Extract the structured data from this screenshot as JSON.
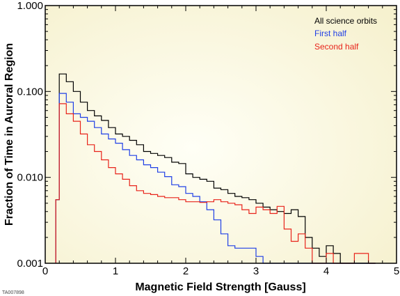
{
  "chart_data": {
    "type": "line",
    "title": "",
    "xlabel": "Magnetic Field Strength [Gauss]",
    "ylabel": "Fraction of Time in Auroral Region",
    "xlim": [
      0,
      5
    ],
    "ylim": [
      0.001,
      1.0
    ],
    "yscale": "log",
    "step": true,
    "grid": false,
    "legend_position": "top-right",
    "x_ticks": [
      0,
      1,
      2,
      3,
      4,
      5
    ],
    "x_tick_labels": [
      "0",
      "1",
      "2",
      "3",
      "4",
      "5"
    ],
    "y_ticks": [
      0.001,
      0.01,
      0.1,
      1.0
    ],
    "y_tick_labels": [
      "0.001",
      "0.010",
      "0.100",
      "1.000"
    ],
    "bin_edges": [
      0.15,
      0.2,
      0.3,
      0.4,
      0.5,
      0.6,
      0.7,
      0.8,
      0.9,
      1.0,
      1.1,
      1.2,
      1.3,
      1.4,
      1.5,
      1.6,
      1.7,
      1.8,
      1.9,
      2.0,
      2.1,
      2.2,
      2.3,
      2.4,
      2.5,
      2.6,
      2.7,
      2.8,
      2.9,
      3.0,
      3.1,
      3.2,
      3.3,
      3.4,
      3.5,
      3.6,
      3.7,
      3.8,
      3.9,
      4.0,
      4.1,
      4.2,
      4.3,
      4.4,
      4.5,
      4.6,
      4.7
    ],
    "series": [
      {
        "name": "All science orbits",
        "color": "#000000",
        "values": [
          0.0055,
          0.16,
          0.13,
          0.1,
          0.075,
          0.06,
          0.052,
          0.046,
          0.038,
          0.032,
          0.03,
          0.027,
          0.024,
          0.02,
          0.019,
          0.018,
          0.017,
          0.015,
          0.0145,
          0.011,
          0.01,
          0.0095,
          0.009,
          0.0075,
          0.0072,
          0.0065,
          0.006,
          0.0058,
          0.0055,
          0.005,
          0.0045,
          0.0042,
          0.004,
          0.0038,
          0.0042,
          0.0035,
          0.002,
          0.0015,
          0.0012,
          0.0016,
          0.0013,
          0.001,
          0.001,
          0.001,
          0.001,
          0.001
        ]
      },
      {
        "name": "First half",
        "color": "#1f3fe6",
        "values": [
          0.0055,
          0.095,
          0.075,
          0.055,
          0.05,
          0.045,
          0.038,
          0.032,
          0.028,
          0.025,
          0.021,
          0.018,
          0.016,
          0.014,
          0.013,
          0.0115,
          0.0102,
          0.0082,
          0.0078,
          0.0065,
          0.006,
          0.0052,
          0.0042,
          0.0032,
          0.0022,
          0.0016,
          0.0015,
          0.0015,
          0.0015,
          0.0012,
          0.001,
          0.001,
          0.001,
          0.001,
          0.001,
          0.001,
          0.001,
          0.001,
          0.001,
          0.001,
          0.001,
          0.001,
          0.001,
          0.001,
          0.001,
          0.001
        ]
      },
      {
        "name": "Second half",
        "color": "#e8231a",
        "values": [
          0.0055,
          0.072,
          0.055,
          0.045,
          0.032,
          0.024,
          0.02,
          0.016,
          0.013,
          0.011,
          0.0095,
          0.008,
          0.007,
          0.0065,
          0.0063,
          0.006,
          0.0058,
          0.0058,
          0.0055,
          0.0052,
          0.0052,
          0.0051,
          0.0052,
          0.0055,
          0.0052,
          0.005,
          0.0048,
          0.0042,
          0.0038,
          0.0045,
          0.0042,
          0.0038,
          0.0046,
          0.0025,
          0.0018,
          0.0022,
          0.0015,
          0.001,
          0.001,
          0.0013,
          0.001,
          0.001,
          0.001,
          0.0013,
          0.0013,
          0.001
        ]
      }
    ]
  },
  "legend": {
    "items": [
      {
        "label": "All science orbits",
        "color": "#000000"
      },
      {
        "label": "First half",
        "color": "#1f3fe6"
      },
      {
        "label": "Second half",
        "color": "#e8231a"
      }
    ]
  },
  "labels": {
    "xlabel": "Magnetic Field Strength [Gauss]",
    "ylabel": "Fraction of Time in Auroral Region",
    "corner_id": "TA007898"
  },
  "colors": {
    "plot_bg_center": "#fffff6",
    "plot_bg_edge": "#f6f1cf",
    "axis": "#000000"
  }
}
